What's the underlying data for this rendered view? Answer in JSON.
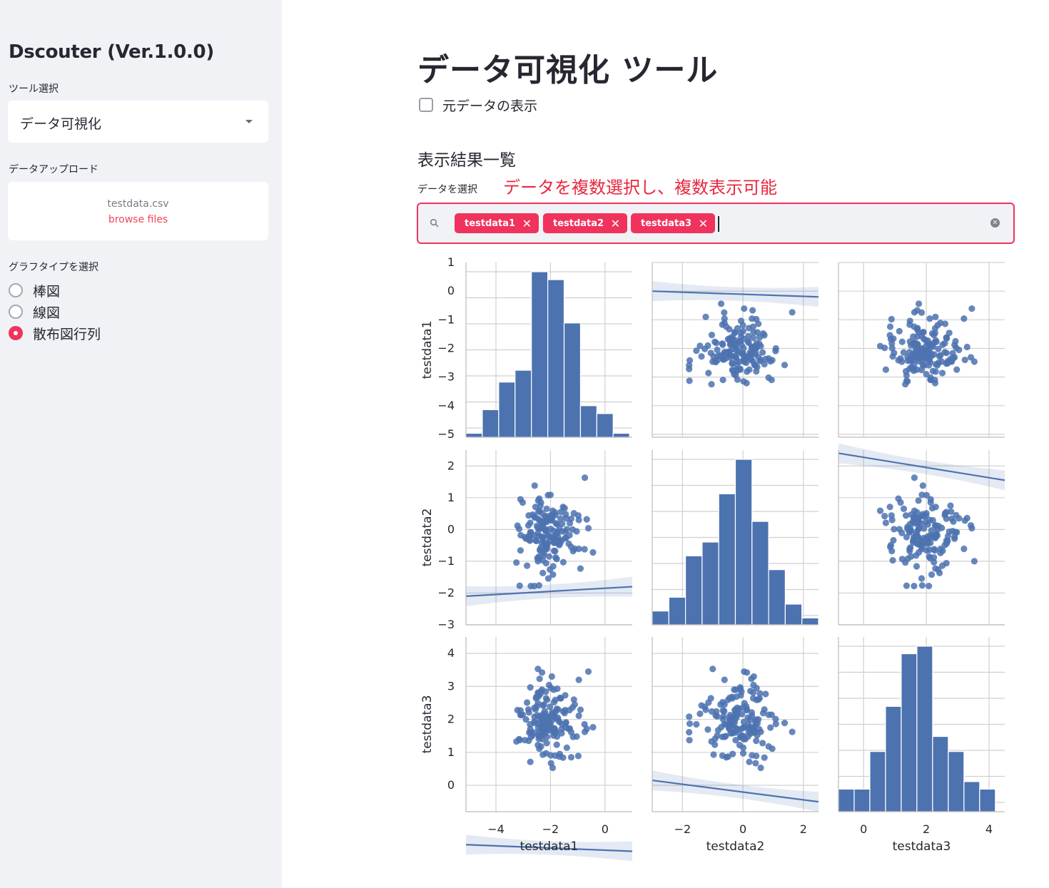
{
  "sidebar": {
    "app_title": "Dscouter (Ver.1.0.0)",
    "tool_select_label": "ツール選択",
    "tool_select_value": "データ可視化",
    "upload_label": "データアップロード",
    "upload_filename": "testdata.csv",
    "upload_browse": "browse files",
    "graph_type_label": "グラフタイプを選択",
    "graph_types": [
      {
        "label": "棒図",
        "selected": false
      },
      {
        "label": "線図",
        "selected": false
      },
      {
        "label": "散布図行列",
        "selected": true
      }
    ]
  },
  "main": {
    "title": "データ可視化 ツール",
    "show_raw_label": "元データの表示",
    "show_raw_checked": false,
    "results_header": "表示結果一覧",
    "select_data_label": "データを選択",
    "annotation": "データを複数選択し、複数表示可能",
    "selected_tags": [
      "testdata1",
      "testdata2",
      "testdata3"
    ]
  },
  "colors": {
    "accent": "#f0335c",
    "annotation": "#e8283e",
    "plot_blue": "#4c72b0",
    "grid": "#d0d0d0"
  },
  "chart_data": {
    "type": "scatter",
    "title": "",
    "variables": [
      "testdata1",
      "testdata2",
      "testdata3"
    ],
    "ranges": {
      "testdata1": [
        -5.1,
        1.0
      ],
      "testdata2": [
        -3.0,
        2.5
      ],
      "testdata3": [
        -0.8,
        4.5
      ]
    },
    "ticks": {
      "testdata1": [
        -5,
        -4,
        -3,
        -2,
        -1,
        0,
        1
      ],
      "testdata2": [
        -3,
        -2,
        -1,
        0,
        1,
        2
      ],
      "testdata3": [
        0,
        1,
        2,
        3,
        4
      ]
    },
    "x_tick_labels": {
      "testdata1": [
        "−4",
        "−2",
        "0"
      ],
      "testdata2": [
        "−2",
        "0",
        "2"
      ],
      "testdata3": [
        "0",
        "2",
        "4"
      ]
    },
    "y_tick_labels": {
      "testdata1": [
        "1",
        "0",
        "−1",
        "−2",
        "−3",
        "−4",
        "−5"
      ],
      "testdata2": [
        "2",
        "1",
        "0",
        "−1",
        "−2",
        "−3"
      ],
      "testdata3": [
        "4",
        "3",
        "2",
        "1",
        "0"
      ]
    },
    "histograms": {
      "testdata1": {
        "edges": [
          -5.1,
          -4.5,
          -3.9,
          -3.3,
          -2.7,
          -2.1,
          -1.5,
          -0.9,
          -0.3,
          0.3,
          0.9
        ],
        "counts": [
          1,
          7,
          14,
          17,
          42,
          40,
          29,
          8,
          6,
          1
        ]
      },
      "testdata2": {
        "edges": [
          -3.0,
          -2.45,
          -1.9,
          -1.35,
          -0.8,
          -0.25,
          0.3,
          0.85,
          1.4,
          1.95,
          2.5
        ],
        "counts": [
          2,
          4,
          10,
          12,
          19,
          24,
          15,
          8,
          3,
          1
        ]
      },
      "testdata3": {
        "edges": [
          -0.8,
          -0.3,
          0.2,
          0.7,
          1.2,
          1.7,
          2.2,
          2.7,
          3.2,
          3.7,
          4.2
        ],
        "counts": [
          3,
          3,
          8,
          14,
          21,
          22,
          10,
          8,
          4,
          3
        ]
      }
    },
    "regressions": {
      "testdata2~testdata1": {
        "x": [
          -5.1,
          1.0
        ],
        "y": [
          -2.1,
          -1.8
        ]
      },
      "testdata3~testdata1": {
        "x": [
          -5.1,
          1.0
        ],
        "y": [
          -1.8,
          -2.0
        ]
      },
      "testdata1~testdata2": {
        "x": [
          -3.0,
          2.5
        ],
        "y": [
          0.0,
          -0.2
        ]
      },
      "testdata3~testdata2": {
        "x": [
          -3.0,
          2.5
        ],
        "y": [
          0.15,
          -0.5
        ]
      },
      "testdata1~testdata3": {
        "x": [
          -0.8,
          4.5
        ],
        "y": [
          2.15,
          1.9
        ]
      },
      "testdata2~testdata3": {
        "x": [
          -0.8,
          4.5
        ],
        "y": [
          2.4,
          1.55
        ]
      }
    },
    "scatter_points": [
      [
        -2.09,
        1.08,
        2.01
      ],
      [
        -2.03,
        -0.36,
        1.9
      ],
      [
        -2.14,
        0.65,
        1.28
      ],
      [
        -2.72,
        -1.78,
        1.61
      ],
      [
        -3.1,
        0.95,
        2.14
      ],
      [
        -0.74,
        1.63,
        1.62
      ],
      [
        -1.76,
        0.17,
        1.48
      ],
      [
        -2.14,
        -0.55,
        1.86
      ],
      [
        -2.31,
        0.13,
        3.42
      ],
      [
        -2.02,
        -1.26,
        2.38
      ],
      [
        -1.83,
        -0.68,
        0.9
      ],
      [
        -1.43,
        -0.27,
        1.91
      ],
      [
        -1.98,
        0.45,
        2.95
      ],
      [
        -1.29,
        0.2,
        1.72
      ],
      [
        -0.96,
        0.3,
        2.11
      ],
      [
        -0.9,
        -1.23,
        2.29
      ],
      [
        -1.77,
        -0.93,
        1.23
      ],
      [
        -3.21,
        0.12,
        2.28
      ],
      [
        -2.3,
        0.08,
        1.4
      ],
      [
        -1.04,
        -0.06,
        1.48
      ],
      [
        -2.44,
        -0.21,
        2.69
      ],
      [
        -2.74,
        0.21,
        0.71
      ],
      [
        -1.98,
        0.42,
        0.67
      ],
      [
        -2.11,
        -0.44,
        2.05
      ],
      [
        -2.34,
        0.25,
        2.86
      ],
      [
        -1.11,
        -0.61,
        2.45
      ],
      [
        -2.41,
        0.97,
        1.11
      ],
      [
        -3.25,
        -1.04,
        1.33
      ],
      [
        -1.53,
        -1.03,
        2.24
      ],
      [
        -2.46,
        -1.0,
        3.53
      ],
      [
        -1.82,
        0.45,
        2.59
      ],
      [
        -1.14,
        0.51,
        2.6
      ],
      [
        -2.46,
        0.05,
        2.49
      ],
      [
        -2.0,
        1.09,
        1.86
      ],
      [
        -2.52,
        -0.36,
        2.68
      ],
      [
        -2.4,
        0.59,
        1.62
      ],
      [
        -3.09,
        -0.18,
        2.13
      ],
      [
        -1.59,
        -0.35,
        1.58
      ],
      [
        -2.19,
        -0.03,
        2.16
      ],
      [
        -0.75,
        -0.62,
        1.85
      ],
      [
        -2.34,
        0.04,
        1.77
      ],
      [
        -2.16,
        0.01,
        0.97
      ],
      [
        -2.05,
        0.35,
        3.04
      ],
      [
        -2.2,
        0.25,
        1.57
      ],
      [
        -1.77,
        -0.13,
        2.32
      ],
      [
        -1.46,
        -0.27,
        2.28
      ],
      [
        -2.74,
        -0.09,
        2.97
      ],
      [
        -0.44,
        -0.72,
        1.76
      ],
      [
        -2.58,
        1.38,
        1.89
      ],
      [
        -3.13,
        -1.77,
        1.37
      ],
      [
        -1.81,
        -0.32,
        1.61
      ],
      [
        -2.35,
        -0.57,
        1.49
      ],
      [
        -1.91,
        -1.42,
        2.17
      ],
      [
        -3.15,
        0.02,
        1.4
      ],
      [
        -2.13,
        -0.49,
        2.59
      ],
      [
        -1.92,
        0.59,
        0.53
      ],
      [
        -2.79,
        -0.2,
        2.21
      ],
      [
        -2.15,
        0.42,
        1.84
      ],
      [
        -1.92,
        0.44,
        1.99
      ],
      [
        -1.43,
        0.35,
        1.75
      ],
      [
        -1.99,
        -0.23,
        1.66
      ],
      [
        -2.53,
        -0.35,
        2.64
      ],
      [
        -1.73,
        -0.36,
        2.05
      ],
      [
        -1.24,
        -0.55,
        0.85
      ],
      [
        -2.94,
        -0.24,
        1.37
      ],
      [
        -2.28,
        -0.97,
        0.93
      ],
      [
        -2.4,
        0.28,
        3.23
      ],
      [
        -2.59,
        -1.78,
        2.08
      ],
      [
        -2.42,
        -0.85,
        1.51
      ],
      [
        -2.3,
        0.51,
        2.0
      ],
      [
        -1.54,
        0.71,
        0.84
      ],
      [
        -2.21,
        -0.45,
        1.83
      ],
      [
        -2.46,
        -0.11,
        1.22
      ],
      [
        -2.28,
        -1.37,
        2.42
      ],
      [
        -2.13,
        0.24,
        1.99
      ],
      [
        -1.33,
        -0.45,
        1.71
      ],
      [
        -1.89,
        -0.04,
        1.51
      ],
      [
        -2.1,
        -0.15,
        1.67
      ],
      [
        -1.9,
        -1.16,
        1.69
      ],
      [
        -1.84,
        0.54,
        1.7
      ],
      [
        -2.55,
        0.71,
        2.3
      ],
      [
        -0.96,
        -0.61,
        3.2
      ],
      [
        -2.75,
        -0.35,
        1.85
      ],
      [
        -2.16,
        -1.06,
        2.64
      ],
      [
        -1.84,
        -0.41,
        1.58
      ],
      [
        -2.05,
        -0.85,
        2.09
      ],
      [
        -2.07,
        -0.22,
        2.04
      ],
      [
        -1.46,
        -0.07,
        2.73
      ],
      [
        -2.5,
        0.11,
        2.39
      ],
      [
        -2.86,
        -1.14,
        2.51
      ],
      [
        -1.8,
        0.19,
        1.63
      ],
      [
        -1.72,
        -0.24,
        2.3
      ],
      [
        -2.24,
        -0.74,
        2.45
      ],
      [
        -1.99,
        0.02,
        1.75
      ],
      [
        -0.61,
        0.04,
        3.45
      ],
      [
        -1.88,
        -0.29,
        2.9
      ],
      [
        -3.02,
        0.85,
        2.14
      ],
      [
        -2.74,
        -0.22,
        1.71
      ],
      [
        -2.46,
        0.34,
        2.81
      ],
      [
        -2.72,
        -0.09,
        1.46
      ],
      [
        -1.24,
        0.34,
        1.61
      ],
      [
        -1.87,
        -0.42,
        2.13
      ],
      [
        -2.31,
        -0.23,
        2.9
      ],
      [
        -2.21,
        -0.47,
        1.75
      ],
      [
        -1.68,
        -0.49,
        0.87
      ],
      [
        -2.48,
        -0.9,
        2.12
      ],
      [
        -2.08,
        -1.54,
        1.85
      ],
      [
        -2.17,
        -0.05,
        2.84
      ],
      [
        -2.81,
        0.13,
        2.3
      ],
      [
        -2.28,
        0.16,
        2.05
      ],
      [
        -1.95,
        0.36,
        3.3
      ],
      [
        -1.3,
        -0.18,
        2.28
      ],
      [
        -1.81,
        -0.88,
        2.24
      ],
      [
        -2.78,
        -0.33,
        1.6
      ],
      [
        -2.38,
        -0.66,
        2.01
      ],
      [
        -2.8,
        0.44,
        1.35
      ],
      [
        -2.3,
        -0.24,
        1.6
      ],
      [
        -2.65,
        0.47,
        1.52
      ],
      [
        -1.44,
        0.48,
        1.88
      ],
      [
        -1.57,
        0.18,
        1.85
      ],
      [
        -2.37,
        0.75,
        2.77
      ],
      [
        -2.45,
        0.91,
        1.75
      ],
      [
        -1.62,
        0.55,
        2.64
      ],
      [
        -1.66,
        -0.34,
        0.95
      ],
      [
        -1.67,
        0.03,
        1.92
      ],
      [
        -2.35,
        0.85,
        1.18
      ],
      [
        -2.42,
        -1.76,
        1.87
      ],
      [
        -2.21,
        -0.62,
        2.25
      ],
      [
        -2.44,
        0.56,
        2.79
      ],
      [
        -1.19,
        0.0,
        2.36
      ],
      [
        -1.48,
        0.67,
        2.19
      ],
      [
        -3.1,
        -0.66,
        2.27
      ],
      [
        -2.27,
        -0.35,
        1.81
      ],
      [
        -1.86,
        -0.22,
        1.73
      ],
      [
        -2.26,
        -0.82,
        1.67
      ],
      [
        -2.42,
        0.03,
        1.49
      ],
      [
        -1.99,
        0.3,
        0.91
      ],
      [
        -1.84,
        -0.34,
        2.06
      ],
      [
        -2.2,
        0.24,
        1.77
      ],
      [
        -2.9,
        -0.29,
        2.0
      ],
      [
        -1.4,
        0.01,
        1.14
      ],
      [
        -2.21,
        0.4,
        1.64
      ],
      [
        -1.17,
        -0.68,
        1.47
      ],
      [
        -1.59,
        -0.06,
        1.71
      ],
      [
        -2.59,
        0.41,
        1.93
      ],
      [
        -2.59,
        -0.19,
        2.35
      ],
      [
        -1.94,
        0.29,
        2.21
      ],
      [
        -0.67,
        0.32,
        1.71
      ],
      [
        -2.32,
        -0.42,
        1.91
      ],
      [
        -0.98,
        0.44,
        0.89
      ],
      [
        -1.63,
        0.34,
        2.64
      ],
      [
        -1.75,
        -0.08,
        2.93
      ],
      [
        -2.58,
        0.38,
        1.6
      ],
      [
        -2.13,
        -0.61,
        1.47
      ],
      [
        -1.87,
        -0.67,
        2.52
      ],
      [
        -2.27,
        -0.25,
        2.16
      ],
      [
        -1.65,
        -0.44,
        2.65
      ],
      [
        -2.43,
        -0.92,
        1.41
      ],
      [
        -1.72,
        -0.44,
        1.98
      ],
      [
        -2.39,
        -0.64,
        2.1
      ]
    ]
  }
}
